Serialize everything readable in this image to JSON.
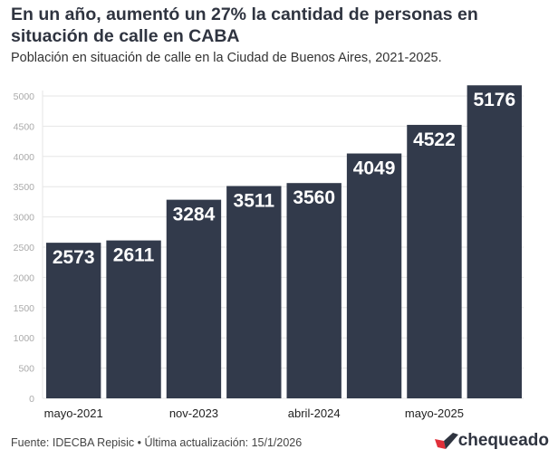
{
  "chart_data": {
    "type": "bar",
    "title": "En un año, aumentó un 27% la cantidad de personas en situación de calle en CABA",
    "subtitle": "Población en situación de calle en la Ciudad de Buenos Aires, 2021-2025.",
    "categories": [
      "mayo-2021",
      "",
      "nov-2023",
      "",
      "abril-2024",
      "",
      "mayo-2025",
      ""
    ],
    "values": [
      2573,
      2611,
      3284,
      3511,
      3560,
      4049,
      4522,
      5176
    ],
    "xlabel": "",
    "ylabel": "",
    "ylim": [
      0,
      5000
    ],
    "yticks": [
      0,
      500,
      1000,
      1500,
      2000,
      2500,
      3000,
      3500,
      4000,
      4500,
      5000
    ],
    "grid": true,
    "bar_color": "#323a4b",
    "label_color": "#ffffff"
  },
  "footer": {
    "source": "Fuente: IDECBA Repisic • Última actualización: 15/1/2026",
    "logo": "chequeado",
    "logo_color": "#e0303a"
  }
}
